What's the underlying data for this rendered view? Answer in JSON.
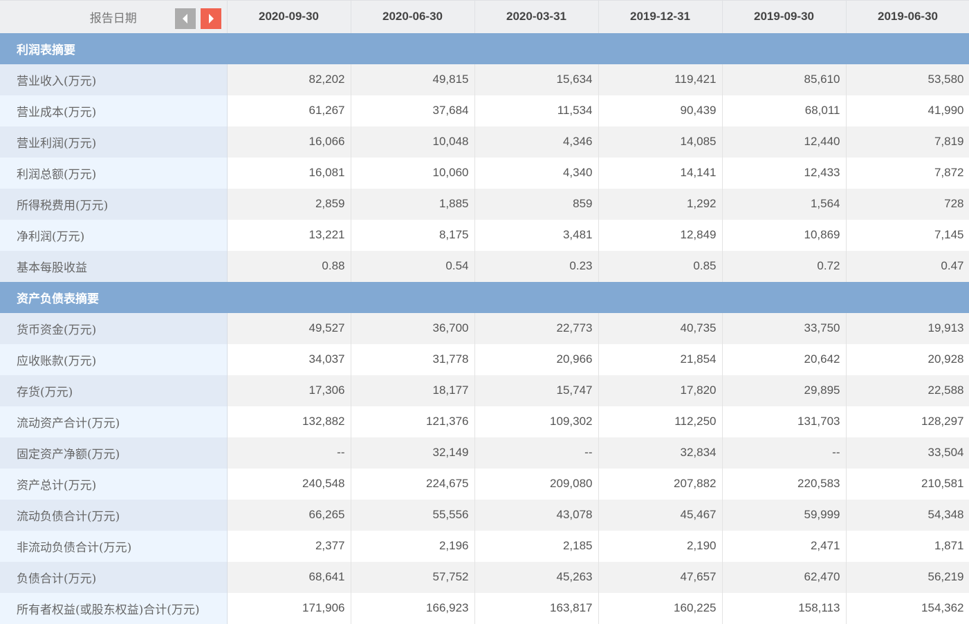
{
  "header": {
    "label": "报告日期",
    "dates": [
      "2020-09-30",
      "2020-06-30",
      "2020-03-31",
      "2019-12-31",
      "2019-09-30",
      "2019-06-30"
    ]
  },
  "sections": [
    {
      "title": "利润表摘要",
      "rows": [
        {
          "label": "营业收入(万元)",
          "values": [
            "82,202",
            "49,815",
            "15,634",
            "119,421",
            "85,610",
            "53,580"
          ]
        },
        {
          "label": "营业成本(万元)",
          "values": [
            "61,267",
            "37,684",
            "11,534",
            "90,439",
            "68,011",
            "41,990"
          ]
        },
        {
          "label": "营业利润(万元)",
          "values": [
            "16,066",
            "10,048",
            "4,346",
            "14,085",
            "12,440",
            "7,819"
          ]
        },
        {
          "label": "利润总额(万元)",
          "values": [
            "16,081",
            "10,060",
            "4,340",
            "14,141",
            "12,433",
            "7,872"
          ]
        },
        {
          "label": "所得税费用(万元)",
          "values": [
            "2,859",
            "1,885",
            "859",
            "1,292",
            "1,564",
            "728"
          ]
        },
        {
          "label": "净利润(万元)",
          "values": [
            "13,221",
            "8,175",
            "3,481",
            "12,849",
            "10,869",
            "7,145"
          ]
        },
        {
          "label": "基本每股收益",
          "values": [
            "0.88",
            "0.54",
            "0.23",
            "0.85",
            "0.72",
            "0.47"
          ]
        }
      ]
    },
    {
      "title": "资产负债表摘要",
      "rows": [
        {
          "label": "货币资金(万元)",
          "values": [
            "49,527",
            "36,700",
            "22,773",
            "40,735",
            "33,750",
            "19,913"
          ]
        },
        {
          "label": "应收账款(万元)",
          "values": [
            "34,037",
            "31,778",
            "20,966",
            "21,854",
            "20,642",
            "20,928"
          ]
        },
        {
          "label": "存货(万元)",
          "values": [
            "17,306",
            "18,177",
            "15,747",
            "17,820",
            "29,895",
            "22,588"
          ]
        },
        {
          "label": "流动资产合计(万元)",
          "values": [
            "132,882",
            "121,376",
            "109,302",
            "112,250",
            "131,703",
            "128,297"
          ]
        },
        {
          "label": "固定资产净额(万元)",
          "values": [
            "--",
            "32,149",
            "--",
            "32,834",
            "--",
            "33,504"
          ]
        },
        {
          "label": "资产总计(万元)",
          "values": [
            "240,548",
            "224,675",
            "209,080",
            "207,882",
            "220,583",
            "210,581"
          ]
        },
        {
          "label": "流动负债合计(万元)",
          "values": [
            "66,265",
            "55,556",
            "43,078",
            "45,467",
            "59,999",
            "54,348"
          ]
        },
        {
          "label": "非流动负债合计(万元)",
          "values": [
            "2,377",
            "2,196",
            "2,185",
            "2,190",
            "2,471",
            "1,871"
          ]
        },
        {
          "label": "负债合计(万元)",
          "values": [
            "68,641",
            "57,752",
            "45,263",
            "47,657",
            "62,470",
            "56,219"
          ]
        },
        {
          "label": "所有者权益(或股东权益)合计(万元)",
          "values": [
            "171,906",
            "166,923",
            "163,817",
            "160,225",
            "158,113",
            "154,362"
          ]
        }
      ]
    }
  ]
}
